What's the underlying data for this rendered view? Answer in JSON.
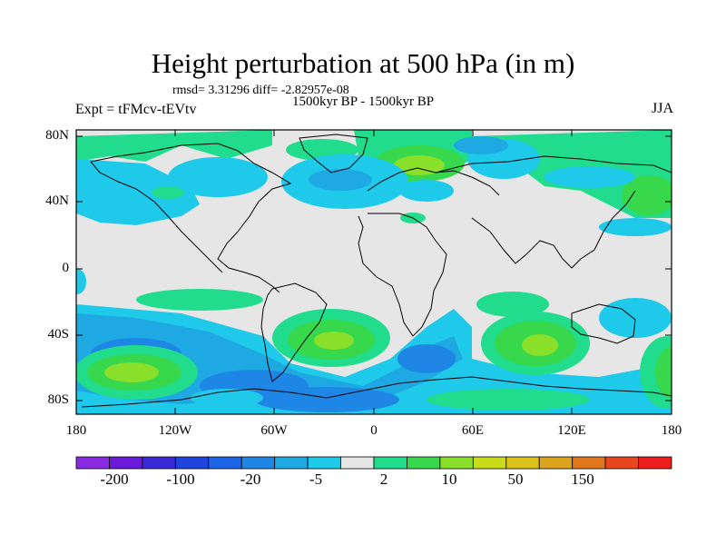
{
  "title": "Height perturbation at 500 hPa (in m)",
  "stats": "rmsd= 3.31296 diff= -2.82957e-08",
  "period": "1500kyr BP - 1500kyr BP",
  "experiment": "Expt = tFMcv-tEVtv",
  "season": "JJA",
  "lat_ticks": [
    "80N",
    "40N",
    "0",
    "40S",
    "80S"
  ],
  "lon_ticks": [
    "180",
    "120W",
    "60W",
    "0",
    "60E",
    "120E",
    "180"
  ],
  "colorbar": {
    "labels": [
      "-200",
      "-100",
      "-20",
      "-5",
      "2",
      "10",
      "50",
      "150"
    ],
    "colors": [
      "#8a2be2",
      "#6a1bd9",
      "#3a2ad6",
      "#1f45dc",
      "#1d64e6",
      "#1e87e6",
      "#1ea9e3",
      "#1ec9ea",
      "#e6e6e6",
      "#20dc8c",
      "#38d84c",
      "#8adf2a",
      "#c8dc1a",
      "#dcc21a",
      "#dca41c",
      "#e2781c",
      "#e8461c",
      "#ee1e1e"
    ]
  },
  "colors": {
    "background": "#e6e6e6",
    "coast": "#000000"
  }
}
